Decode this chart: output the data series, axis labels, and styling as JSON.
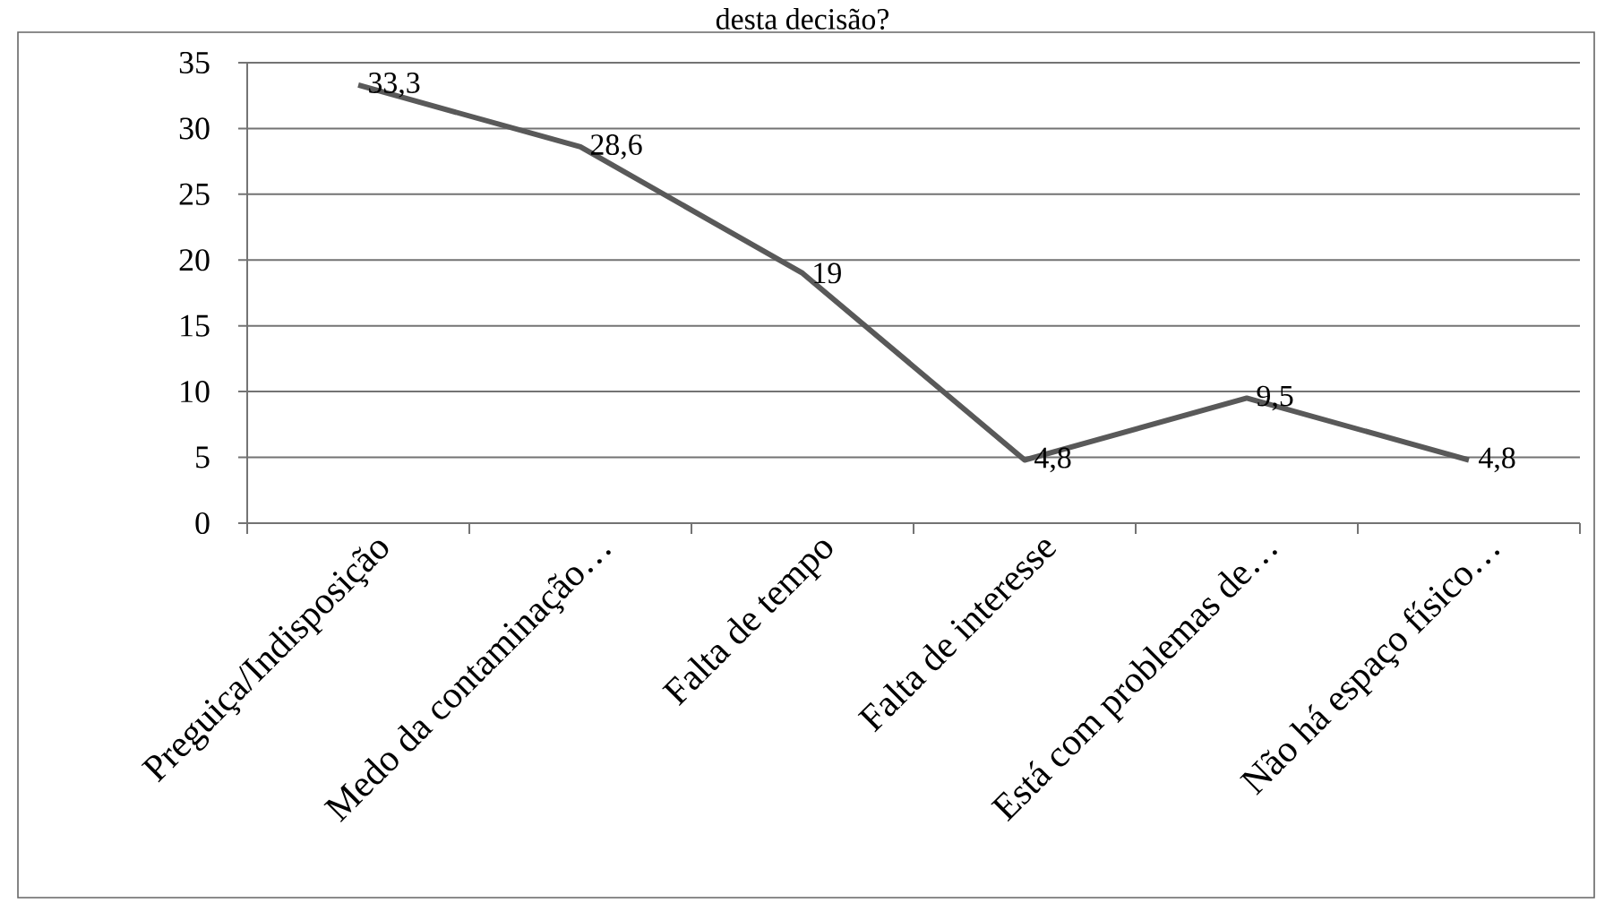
{
  "chart_data": {
    "type": "line",
    "title": "desta decisão?",
    "categories": [
      "Preguiça/Indisposição",
      "Medo da contaminação…",
      "Falta de tempo",
      "Falta de interesse",
      "Está com problemas de…",
      "Não há espaço físico…"
    ],
    "series": [
      {
        "color": "#595959",
        "values": [
          33.3,
          28.6,
          19,
          4.8,
          9.5,
          4.8
        ],
        "value_labels": [
          "33,3",
          "28,6",
          "19",
          "4,8",
          "9,5",
          "4,8"
        ]
      }
    ],
    "ylim": [
      0,
      35
    ],
    "yticks": [
      0,
      5,
      10,
      15,
      20,
      25,
      30,
      35
    ],
    "grid": "y",
    "marker": "none",
    "line_style": "solid"
  }
}
